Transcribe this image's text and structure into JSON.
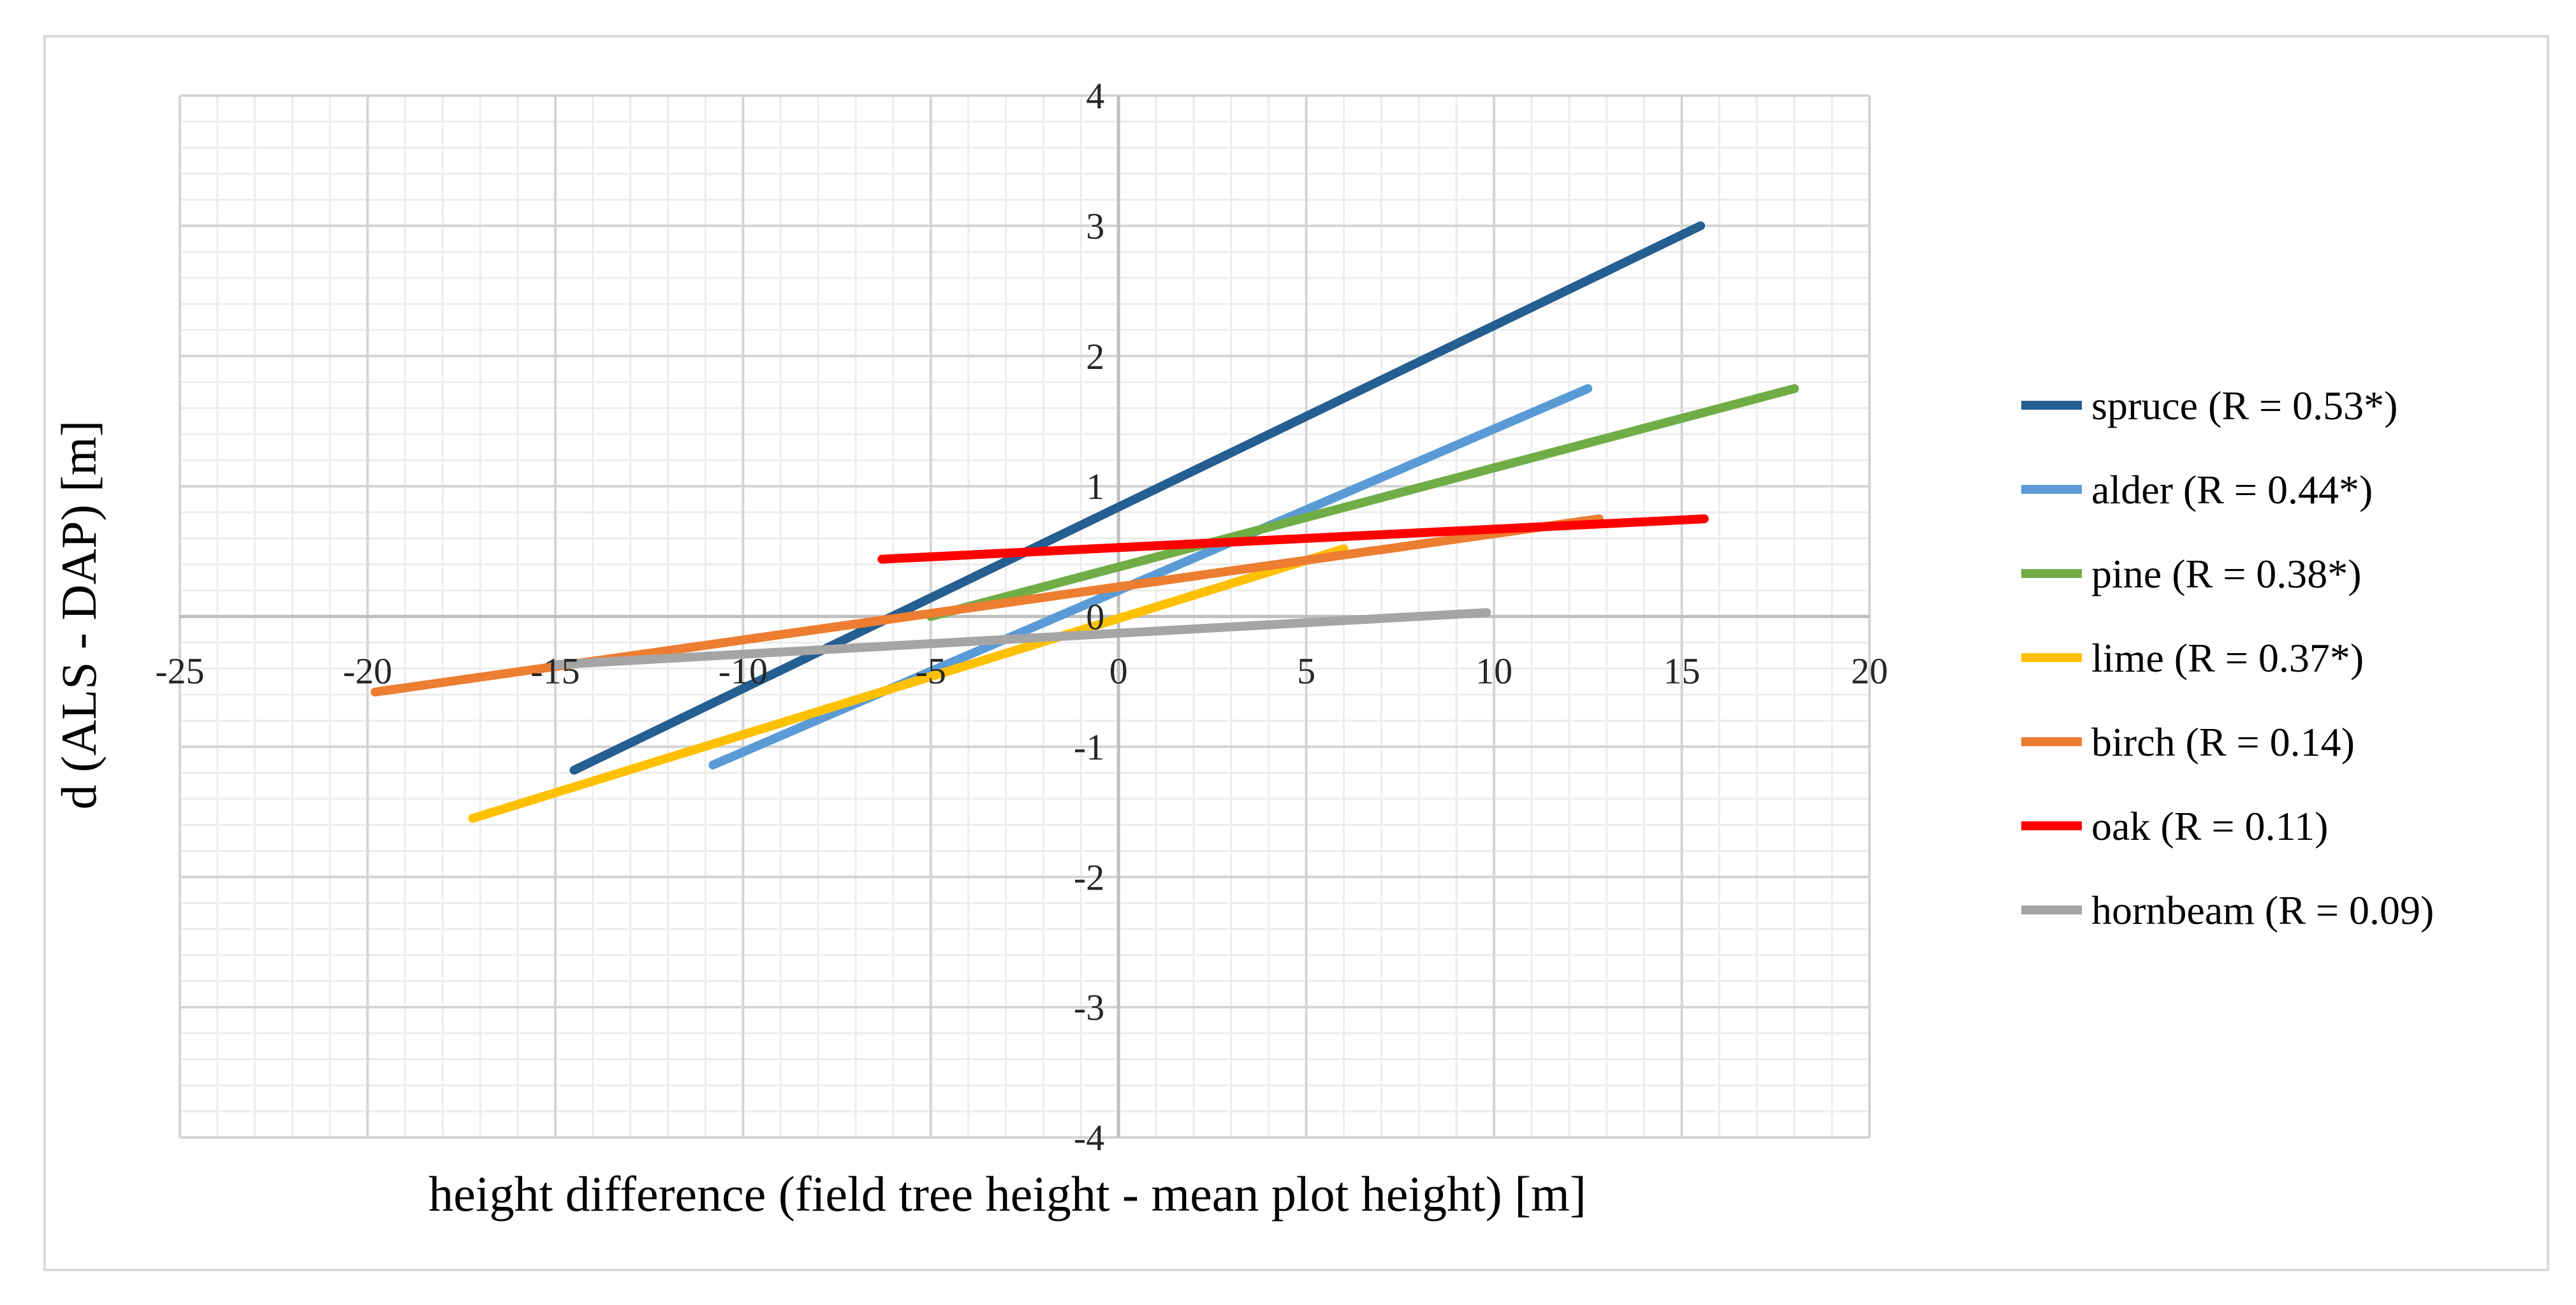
{
  "chart_data": {
    "type": "line",
    "title": "",
    "xlabel": "height difference (field tree height - mean plot height) [m]",
    "ylabel": "d (ALS - DAP) [m]",
    "xlim": [
      -25,
      20
    ],
    "ylim": [
      -4,
      4
    ],
    "xticks": [
      -25,
      -20,
      -15,
      -10,
      -5,
      0,
      5,
      10,
      15,
      20
    ],
    "yticks": [
      -4,
      -3,
      -2,
      -1,
      0,
      1,
      2,
      3,
      4
    ],
    "xtick_labels": [
      "-25",
      "-20",
      "-15",
      "-10",
      "-5",
      "0",
      "5",
      "10",
      "15",
      "20"
    ],
    "ytick_labels": [
      "-4",
      "-3",
      "-2",
      "-1",
      "0",
      "1",
      "2",
      "3",
      "4"
    ],
    "grid": true,
    "legend_position": "right",
    "series": [
      {
        "name": "spruce (R = 0.53*)",
        "color": "#255E91",
        "x": [
          -14.5,
          15.5
        ],
        "y": [
          -1.18,
          3.0
        ]
      },
      {
        "name": "alder (R = 0.44*)",
        "color": "#5B9BD5",
        "x": [
          -10.8,
          12.5
        ],
        "y": [
          -1.14,
          1.75
        ]
      },
      {
        "name": "pine (R = 0.38*)",
        "color": "#70AD47",
        "x": [
          -5.0,
          18.0
        ],
        "y": [
          0.0,
          1.75
        ]
      },
      {
        "name": "lime (R = 0.37*)",
        "color": "#FFC000",
        "x": [
          -17.2,
          6.0
        ],
        "y": [
          -1.55,
          0.52
        ]
      },
      {
        "name": "birch (R = 0.14)",
        "color": "#ED7D31",
        "x": [
          -19.8,
          12.8
        ],
        "y": [
          -0.58,
          0.75
        ]
      },
      {
        "name": "oak (R = 0.11)",
        "color": "#FF0000",
        "x": [
          -6.3,
          15.6
        ],
        "y": [
          0.44,
          0.75
        ]
      },
      {
        "name": "hornbeam (R = 0.09)",
        "color": "#A5A5A5",
        "x": [
          -15.0,
          9.8
        ],
        "y": [
          -0.37,
          0.03
        ]
      }
    ]
  }
}
